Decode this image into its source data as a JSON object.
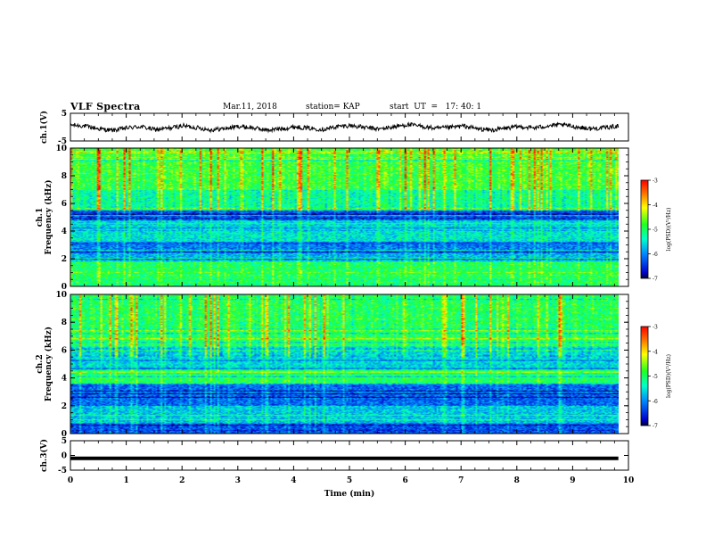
{
  "header": {
    "title": "VLF Spectra",
    "date": "Mar.11, 2018",
    "station_label": "station= KAP",
    "start_label": "start  UT  =   17: 40: 1"
  },
  "chart_data": [
    {
      "type": "line",
      "panel": "ch1-waveform",
      "ylabel": "ch.1(V)",
      "ylim": [
        -5,
        5
      ],
      "yticks": [
        "5",
        "-5"
      ],
      "xlim": [
        0,
        10
      ],
      "x_extent": [
        0,
        9.82
      ],
      "series": [
        {
          "values": [
            0.8,
            0.4,
            -0.6,
            -1.2,
            -0.3,
            0.2,
            -0.9,
            -0.4,
            0.5,
            -0.2,
            -1.0,
            -0.5,
            0.3,
            -0.3,
            -1.1,
            -0.6,
            0.1,
            -0.4,
            -0.8,
            0.2,
            0.6,
            -0.2,
            -0.7,
            0.1,
            0.9,
            0.3,
            -0.5,
            -0.1,
            0.4,
            -0.6,
            -1.1,
            -0.4,
            0.2,
            -0.3,
            0.5,
            0.8,
            0.1,
            -0.6,
            -0.2,
            0.4
          ]
        }
      ]
    },
    {
      "type": "heatmap",
      "panel": "ch1-spectrogram",
      "ylabel": [
        "ch.1",
        "Frequency (kHz)"
      ],
      "ylim": [
        0,
        10
      ],
      "yticks": [
        "0",
        "2",
        "4",
        "6",
        "8",
        "10"
      ],
      "xlim": [
        0,
        10
      ],
      "x_extent": [
        0,
        9.82
      ],
      "colorbar": {
        "label": "log(PSD)(V²/Hz)",
        "range": [
          -7,
          -3
        ],
        "ticks": [
          "-3",
          "-4",
          "-5",
          "-6",
          "-7"
        ]
      },
      "band_profile": [
        {
          "f": [
            0.0,
            0.5
          ],
          "level": -5.1
        },
        {
          "f": [
            0.5,
            1.8
          ],
          "level": -5.0
        },
        {
          "f": [
            1.8,
            2.4
          ],
          "level": -5.8
        },
        {
          "f": [
            2.4,
            3.2
          ],
          "level": -6.1
        },
        {
          "f": [
            3.2,
            4.0
          ],
          "level": -5.5
        },
        {
          "f": [
            4.0,
            4.8
          ],
          "level": -5.6
        },
        {
          "f": [
            4.8,
            5.5
          ],
          "level": -6.3
        },
        {
          "f": [
            5.5,
            7.0
          ],
          "level": -5.2
        },
        {
          "f": [
            7.0,
            10.0
          ],
          "level": -4.8
        }
      ]
    },
    {
      "type": "heatmap",
      "panel": "ch2-spectrogram",
      "ylabel": [
        "ch.2",
        "Frequency (kHz)"
      ],
      "ylim": [
        0,
        10
      ],
      "yticks": [
        "0",
        "2",
        "4",
        "6",
        "8",
        "10"
      ],
      "xlim": [
        0,
        10
      ],
      "x_extent": [
        0,
        9.82
      ],
      "colorbar": {
        "label": "log(PSD)(V²/Hz)",
        "range": [
          -7,
          -3
        ],
        "ticks": [
          "-3",
          "-4",
          "-5",
          "-6",
          "-7"
        ]
      },
      "band_profile": [
        {
          "f": [
            0.0,
            0.8
          ],
          "level": -6.3
        },
        {
          "f": [
            0.8,
            2.0
          ],
          "level": -5.7
        },
        {
          "f": [
            2.0,
            3.6
          ],
          "level": -6.2
        },
        {
          "f": [
            3.6,
            4.6
          ],
          "level": -5.0
        },
        {
          "f": [
            4.6,
            6.2
          ],
          "level": -5.6
        },
        {
          "f": [
            6.2,
            10.0
          ],
          "level": -5.0
        }
      ]
    },
    {
      "type": "line",
      "panel": "ch3-waveform",
      "ylabel": "ch.3(V)",
      "ylim": [
        -5,
        5
      ],
      "yticks": [
        "5",
        "0",
        "-5"
      ],
      "xlim": [
        0,
        10
      ],
      "x_extent": [
        0,
        9.82
      ],
      "xlabel": "Time  (min)",
      "xticks": [
        "0",
        "1",
        "2",
        "3",
        "4",
        "5",
        "6",
        "7",
        "8",
        "9",
        "10"
      ],
      "series": [
        {
          "values": [
            -1.0,
            -1.0
          ]
        }
      ]
    }
  ]
}
